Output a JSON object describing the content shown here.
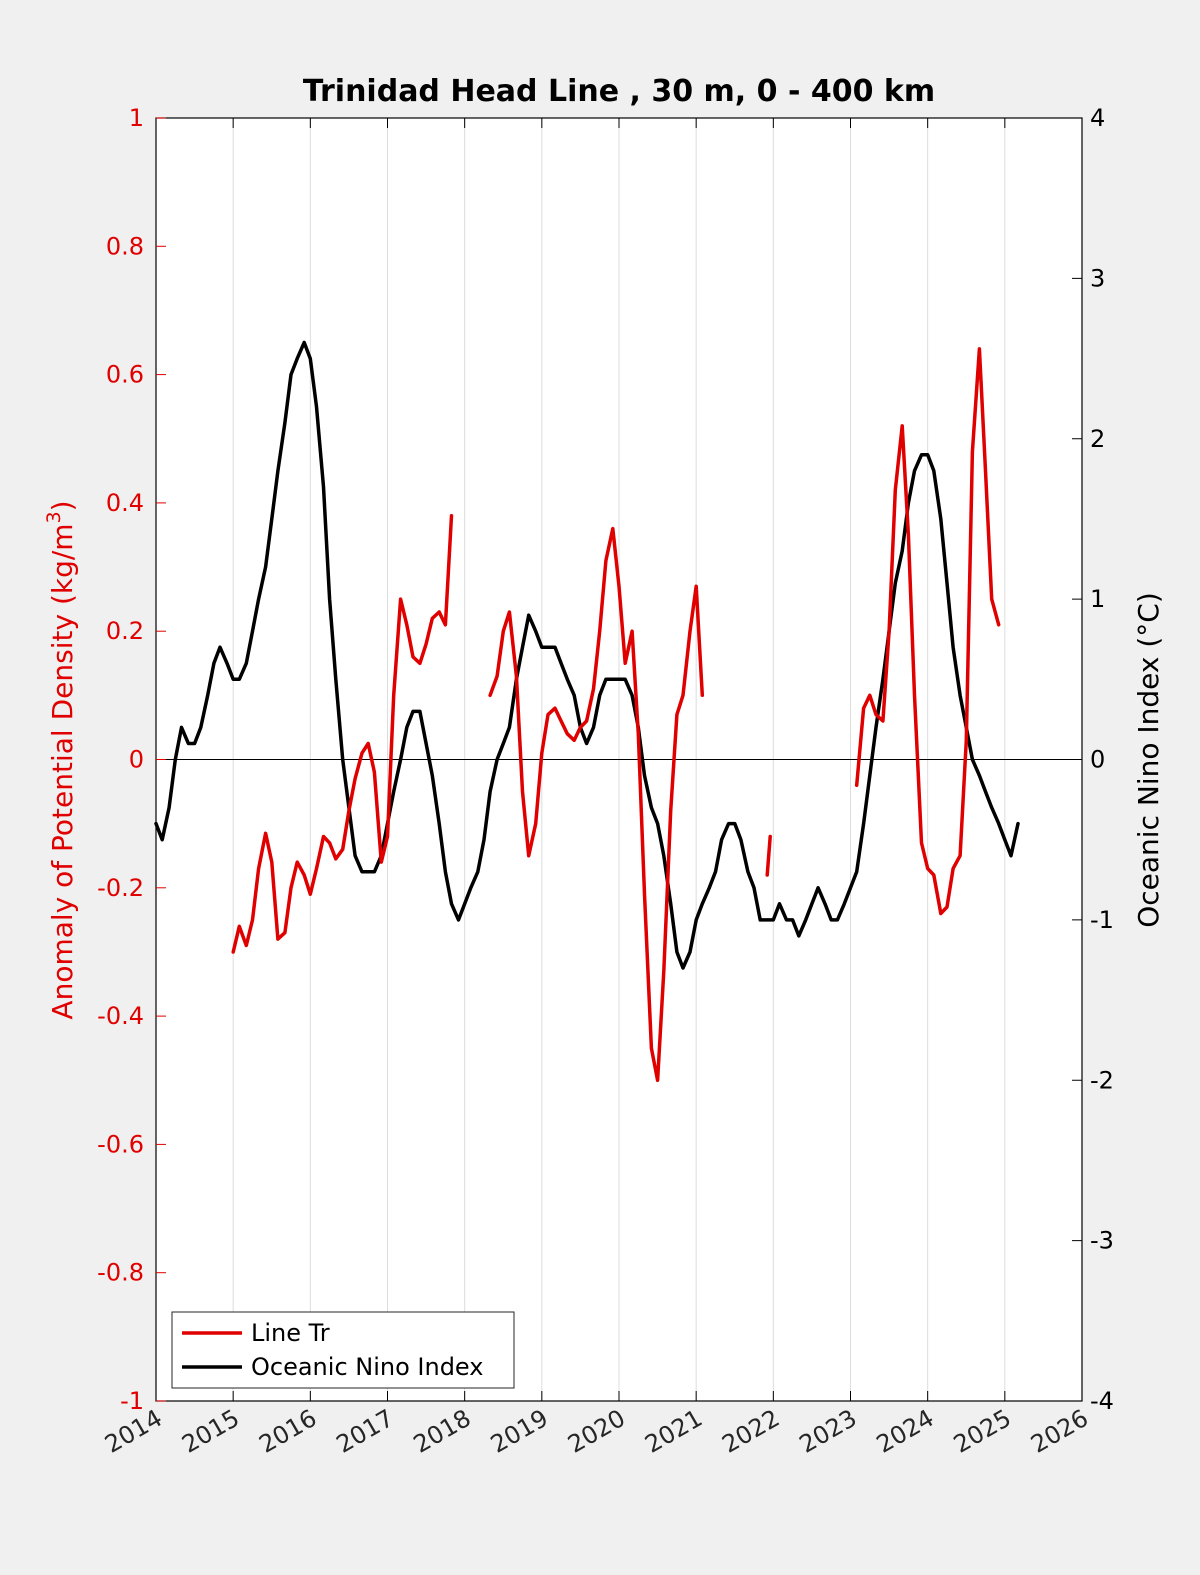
{
  "chart_data": {
    "type": "line",
    "title": "Trinidad Head Line , 30 m, 0 - 400 km",
    "ylabel_left": "Anomaly of Potential Density (kg/m",
    "ylabel_left_sup": "3",
    "ylabel_left_close": ")",
    "ylabel_right": "Oceanic Nino Index (°C)",
    "xlim": [
      2014,
      2026
    ],
    "ylim_left": [
      -1,
      1
    ],
    "ylim_right": [
      -4,
      4
    ],
    "x_ticks": [
      "2014",
      "2015",
      "2016",
      "2017",
      "2018",
      "2019",
      "2020",
      "2021",
      "2022",
      "2023",
      "2024",
      "2025",
      "2026"
    ],
    "y_ticks_left": [
      "1",
      "0.8",
      "0.6",
      "0.4",
      "0.2",
      "0",
      "-0.2",
      "-0.4",
      "-0.6",
      "-0.8",
      "-1"
    ],
    "y_ticks_right": [
      "4",
      "3",
      "2",
      "1",
      "0",
      "-1",
      "-2",
      "-3",
      "-4"
    ],
    "grid": "vertical",
    "legend_position": "bottom-left",
    "colors": {
      "line_tr": "#e00000",
      "oni": "#000000"
    },
    "series": [
      {
        "name": "Line Tr",
        "axis": "left",
        "segments": [
          [
            [
              2015.0,
              -0.3
            ],
            [
              2015.08,
              -0.26
            ],
            [
              2015.17,
              -0.29
            ],
            [
              2015.25,
              -0.25
            ],
            [
              2015.33,
              -0.17
            ],
            [
              2015.42,
              -0.115
            ],
            [
              2015.5,
              -0.16
            ],
            [
              2015.58,
              -0.28
            ],
            [
              2015.67,
              -0.27
            ],
            [
              2015.75,
              -0.2
            ],
            [
              2015.83,
              -0.16
            ],
            [
              2015.92,
              -0.18
            ],
            [
              2016.0,
              -0.21
            ],
            [
              2016.08,
              -0.17
            ],
            [
              2016.17,
              -0.12
            ],
            [
              2016.25,
              -0.13
            ],
            [
              2016.33,
              -0.155
            ],
            [
              2016.42,
              -0.14
            ],
            [
              2016.5,
              -0.08
            ],
            [
              2016.58,
              -0.03
            ],
            [
              2016.67,
              0.01
            ],
            [
              2016.75,
              0.025
            ],
            [
              2016.83,
              -0.02
            ],
            [
              2016.92,
              -0.16
            ],
            [
              2017.0,
              -0.12
            ],
            [
              2017.08,
              0.1
            ],
            [
              2017.17,
              0.25
            ],
            [
              2017.25,
              0.21
            ],
            [
              2017.33,
              0.16
            ],
            [
              2017.42,
              0.15
            ],
            [
              2017.5,
              0.18
            ],
            [
              2017.58,
              0.22
            ],
            [
              2017.67,
              0.23
            ],
            [
              2017.75,
              0.21
            ],
            [
              2017.83,
              0.38
            ]
          ],
          [
            [
              2018.33,
              0.1
            ],
            [
              2018.42,
              0.13
            ],
            [
              2018.5,
              0.2
            ],
            [
              2018.58,
              0.23
            ],
            [
              2018.67,
              0.13
            ],
            [
              2018.75,
              -0.05
            ],
            [
              2018.83,
              -0.15
            ],
            [
              2018.92,
              -0.1
            ],
            [
              2019.0,
              0.01
            ],
            [
              2019.08,
              0.07
            ],
            [
              2019.17,
              0.08
            ],
            [
              2019.25,
              0.06
            ],
            [
              2019.33,
              0.04
            ],
            [
              2019.42,
              0.03
            ],
            [
              2019.5,
              0.05
            ],
            [
              2019.58,
              0.06
            ],
            [
              2019.67,
              0.11
            ],
            [
              2019.75,
              0.2
            ],
            [
              2019.83,
              0.31
            ],
            [
              2019.92,
              0.36
            ],
            [
              2020.0,
              0.27
            ],
            [
              2020.08,
              0.15
            ],
            [
              2020.17,
              0.2
            ],
            [
              2020.25,
              0.04
            ],
            [
              2020.33,
              -0.21
            ],
            [
              2020.42,
              -0.45
            ],
            [
              2020.5,
              -0.5
            ],
            [
              2020.58,
              -0.33
            ],
            [
              2020.67,
              -0.08
            ],
            [
              2020.75,
              0.07
            ],
            [
              2020.83,
              0.1
            ],
            [
              2020.92,
              0.2
            ],
            [
              2021.0,
              0.27
            ],
            [
              2021.08,
              0.1
            ]
          ],
          [
            [
              2021.92,
              -0.18
            ],
            [
              2021.96,
              -0.12
            ]
          ],
          [
            [
              2023.08,
              -0.04
            ],
            [
              2023.17,
              0.08
            ],
            [
              2023.25,
              0.1
            ],
            [
              2023.33,
              0.07
            ],
            [
              2023.42,
              0.06
            ],
            [
              2023.5,
              0.2
            ],
            [
              2023.58,
              0.42
            ],
            [
              2023.67,
              0.52
            ],
            [
              2023.75,
              0.35
            ],
            [
              2023.83,
              0.1
            ],
            [
              2023.92,
              -0.13
            ],
            [
              2024.0,
              -0.17
            ],
            [
              2024.08,
              -0.18
            ],
            [
              2024.17,
              -0.24
            ],
            [
              2024.25,
              -0.23
            ],
            [
              2024.33,
              -0.17
            ],
            [
              2024.42,
              -0.15
            ],
            [
              2024.5,
              0.03
            ],
            [
              2024.58,
              0.48
            ],
            [
              2024.67,
              0.64
            ],
            [
              2024.75,
              0.45
            ],
            [
              2024.83,
              0.25
            ],
            [
              2024.92,
              0.21
            ]
          ]
        ]
      },
      {
        "name": "Oceanic Nino Index",
        "axis": "right",
        "segments": [
          [
            [
              2014.0,
              -0.4
            ],
            [
              2014.08,
              -0.5
            ],
            [
              2014.17,
              -0.3
            ],
            [
              2014.25,
              0.0
            ],
            [
              2014.33,
              0.2
            ],
            [
              2014.42,
              0.1
            ],
            [
              2014.5,
              0.1
            ],
            [
              2014.58,
              0.2
            ],
            [
              2014.67,
              0.4
            ],
            [
              2014.75,
              0.6
            ],
            [
              2014.83,
              0.7
            ],
            [
              2014.92,
              0.6
            ],
            [
              2015.0,
              0.5
            ],
            [
              2015.08,
              0.5
            ],
            [
              2015.17,
              0.6
            ],
            [
              2015.25,
              0.8
            ],
            [
              2015.33,
              1.0
            ],
            [
              2015.42,
              1.2
            ],
            [
              2015.5,
              1.5
            ],
            [
              2015.58,
              1.8
            ],
            [
              2015.67,
              2.1
            ],
            [
              2015.75,
              2.4
            ],
            [
              2015.83,
              2.5
            ],
            [
              2015.92,
              2.6
            ],
            [
              2016.0,
              2.5
            ],
            [
              2016.08,
              2.2
            ],
            [
              2016.17,
              1.7
            ],
            [
              2016.25,
              1.0
            ],
            [
              2016.33,
              0.5
            ],
            [
              2016.42,
              0.0
            ],
            [
              2016.5,
              -0.3
            ],
            [
              2016.58,
              -0.6
            ],
            [
              2016.67,
              -0.7
            ],
            [
              2016.75,
              -0.7
            ],
            [
              2016.83,
              -0.7
            ],
            [
              2016.92,
              -0.6
            ],
            [
              2017.0,
              -0.4
            ],
            [
              2017.08,
              -0.2
            ],
            [
              2017.17,
              0.0
            ],
            [
              2017.25,
              0.2
            ],
            [
              2017.33,
              0.3
            ],
            [
              2017.42,
              0.3
            ],
            [
              2017.5,
              0.1
            ],
            [
              2017.58,
              -0.1
            ],
            [
              2017.67,
              -0.4
            ],
            [
              2017.75,
              -0.7
            ],
            [
              2017.83,
              -0.9
            ],
            [
              2017.92,
              -1.0
            ],
            [
              2018.0,
              -0.9
            ],
            [
              2018.08,
              -0.8
            ],
            [
              2018.17,
              -0.7
            ],
            [
              2018.25,
              -0.5
            ],
            [
              2018.33,
              -0.2
            ],
            [
              2018.42,
              0.0
            ],
            [
              2018.5,
              0.1
            ],
            [
              2018.58,
              0.2
            ],
            [
              2018.67,
              0.5
            ],
            [
              2018.75,
              0.7
            ],
            [
              2018.83,
              0.9
            ],
            [
              2018.92,
              0.8
            ],
            [
              2019.0,
              0.7
            ],
            [
              2019.08,
              0.7
            ],
            [
              2019.17,
              0.7
            ],
            [
              2019.25,
              0.6
            ],
            [
              2019.33,
              0.5
            ],
            [
              2019.42,
              0.4
            ],
            [
              2019.5,
              0.2
            ],
            [
              2019.58,
              0.1
            ],
            [
              2019.67,
              0.2
            ],
            [
              2019.75,
              0.4
            ],
            [
              2019.83,
              0.5
            ],
            [
              2019.92,
              0.5
            ],
            [
              2020.0,
              0.5
            ],
            [
              2020.08,
              0.5
            ],
            [
              2020.17,
              0.4
            ],
            [
              2020.25,
              0.2
            ],
            [
              2020.33,
              -0.1
            ],
            [
              2020.42,
              -0.3
            ],
            [
              2020.5,
              -0.4
            ],
            [
              2020.58,
              -0.6
            ],
            [
              2020.67,
              -0.9
            ],
            [
              2020.75,
              -1.2
            ],
            [
              2020.83,
              -1.3
            ],
            [
              2020.92,
              -1.2
            ],
            [
              2021.0,
              -1.0
            ],
            [
              2021.08,
              -0.9
            ],
            [
              2021.17,
              -0.8
            ],
            [
              2021.25,
              -0.7
            ],
            [
              2021.33,
              -0.5
            ],
            [
              2021.42,
              -0.4
            ],
            [
              2021.5,
              -0.4
            ],
            [
              2021.58,
              -0.5
            ],
            [
              2021.67,
              -0.7
            ],
            [
              2021.75,
              -0.8
            ],
            [
              2021.83,
              -1.0
            ],
            [
              2021.92,
              -1.0
            ],
            [
              2022.0,
              -1.0
            ],
            [
              2022.08,
              -0.9
            ],
            [
              2022.17,
              -1.0
            ],
            [
              2022.25,
              -1.0
            ],
            [
              2022.33,
              -1.1
            ],
            [
              2022.42,
              -1.0
            ],
            [
              2022.5,
              -0.9
            ],
            [
              2022.58,
              -0.8
            ],
            [
              2022.67,
              -0.9
            ],
            [
              2022.75,
              -1.0
            ],
            [
              2022.83,
              -1.0
            ],
            [
              2022.92,
              -0.9
            ],
            [
              2023.0,
              -0.8
            ],
            [
              2023.08,
              -0.7
            ],
            [
              2023.17,
              -0.4
            ],
            [
              2023.25,
              -0.1
            ],
            [
              2023.33,
              0.2
            ],
            [
              2023.42,
              0.5
            ],
            [
              2023.5,
              0.8
            ],
            [
              2023.58,
              1.1
            ],
            [
              2023.67,
              1.3
            ],
            [
              2023.75,
              1.6
            ],
            [
              2023.83,
              1.8
            ],
            [
              2023.92,
              1.9
            ],
            [
              2024.0,
              1.9
            ],
            [
              2024.08,
              1.8
            ],
            [
              2024.17,
              1.5
            ],
            [
              2024.25,
              1.1
            ],
            [
              2024.33,
              0.7
            ],
            [
              2024.42,
              0.4
            ],
            [
              2024.5,
              0.2
            ],
            [
              2024.58,
              0.0
            ],
            [
              2024.67,
              -0.1
            ],
            [
              2024.75,
              -0.2
            ],
            [
              2024.83,
              -0.3
            ],
            [
              2024.92,
              -0.4
            ],
            [
              2025.0,
              -0.5
            ],
            [
              2025.08,
              -0.6
            ],
            [
              2025.17,
              -0.4
            ]
          ]
        ]
      }
    ]
  }
}
